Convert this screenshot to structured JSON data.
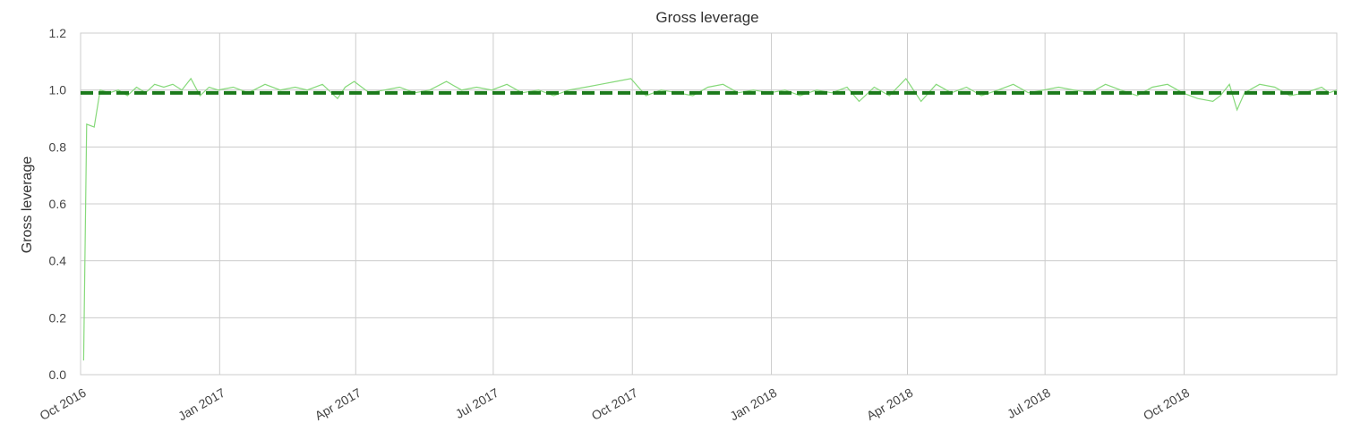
{
  "chart_data": {
    "type": "line",
    "title": "Gross leverage",
    "xlabel": "",
    "ylabel": "Gross leverage",
    "ylim": [
      0.0,
      1.2
    ],
    "y_ticks": [
      0.0,
      0.2,
      0.4,
      0.6,
      0.8,
      1.0,
      1.2
    ],
    "y_tick_labels": [
      "0.0",
      "0.2",
      "0.4",
      "0.6",
      "0.8",
      "1.0",
      "1.2"
    ],
    "xlim": [
      "2016-10-01",
      "2019-01-10"
    ],
    "x_ticks": [
      "2016-10-01",
      "2017-01-01",
      "2017-04-01",
      "2017-07-01",
      "2017-10-01",
      "2018-01-01",
      "2018-04-01",
      "2018-07-01",
      "2018-10-01"
    ],
    "x_tick_labels": [
      "Oct 2016",
      "Jan 2017",
      "Apr 2017",
      "Jul 2017",
      "Oct 2017",
      "Jan 2018",
      "Apr 2018",
      "Jul 2018",
      "Oct 2018"
    ],
    "grid": true,
    "mean_line": {
      "value": 0.99,
      "color": "#1a7a1a"
    },
    "series": [
      {
        "color": "#86d97a",
        "x": [
          "2016-10-03",
          "2016-10-05",
          "2016-10-10",
          "2016-10-14",
          "2016-10-20",
          "2016-10-26",
          "2016-11-01",
          "2016-11-07",
          "2016-11-13",
          "2016-11-19",
          "2016-11-25",
          "2016-12-01",
          "2016-12-07",
          "2016-12-13",
          "2016-12-19",
          "2016-12-25",
          "2016-12-31",
          "2017-01-10",
          "2017-01-20",
          "2017-01-31",
          "2017-02-10",
          "2017-02-20",
          "2017-02-28",
          "2017-03-10",
          "2017-03-20",
          "2017-03-25",
          "2017-03-31",
          "2017-04-10",
          "2017-04-20",
          "2017-04-30",
          "2017-05-10",
          "2017-05-20",
          "2017-05-31",
          "2017-06-10",
          "2017-06-20",
          "2017-06-30",
          "2017-07-10",
          "2017-07-20",
          "2017-07-31",
          "2017-08-10",
          "2017-08-20",
          "2017-08-31",
          "2017-09-10",
          "2017-09-20",
          "2017-09-30",
          "2017-10-10",
          "2017-10-20",
          "2017-10-31",
          "2017-11-10",
          "2017-11-20",
          "2017-11-30",
          "2017-12-10",
          "2017-12-20",
          "2017-12-31",
          "2018-01-10",
          "2018-01-20",
          "2018-01-31",
          "2018-02-10",
          "2018-02-20",
          "2018-02-28",
          "2018-03-10",
          "2018-03-20",
          "2018-03-31",
          "2018-04-10",
          "2018-04-20",
          "2018-04-30",
          "2018-05-10",
          "2018-05-20",
          "2018-05-31",
          "2018-06-10",
          "2018-06-20",
          "2018-06-30",
          "2018-07-10",
          "2018-07-20",
          "2018-07-31",
          "2018-08-10",
          "2018-08-20",
          "2018-08-31",
          "2018-09-10",
          "2018-09-20",
          "2018-09-30",
          "2018-10-10",
          "2018-10-20",
          "2018-10-25",
          "2018-10-31",
          "2018-11-05",
          "2018-11-10",
          "2018-11-20",
          "2018-11-30",
          "2018-12-10",
          "2018-12-20",
          "2018-12-31",
          "2019-01-05",
          "2019-01-10"
        ],
        "values": [
          0.05,
          0.88,
          0.87,
          1.0,
          0.99,
          1.0,
          0.98,
          1.01,
          0.99,
          1.02,
          1.01,
          1.02,
          1.0,
          1.04,
          0.98,
          1.01,
          1.0,
          1.01,
          0.99,
          1.02,
          1.0,
          1.01,
          1.0,
          1.02,
          0.97,
          1.01,
          1.03,
          0.99,
          1.0,
          1.01,
          0.99,
          1.0,
          1.03,
          1.0,
          1.01,
          1.0,
          1.02,
          0.99,
          1.0,
          0.98,
          1.0,
          1.01,
          1.02,
          1.03,
          1.04,
          0.98,
          1.0,
          0.99,
          0.98,
          1.01,
          1.02,
          0.99,
          1.0,
          0.99,
          1.0,
          0.98,
          1.0,
          0.99,
          1.01,
          0.96,
          1.01,
          0.98,
          1.04,
          0.96,
          1.02,
          0.99,
          1.01,
          0.98,
          1.0,
          1.02,
          0.99,
          1.0,
          1.01,
          1.0,
          0.99,
          1.02,
          1.0,
          0.98,
          1.01,
          1.02,
          0.99,
          0.97,
          0.96,
          0.98,
          1.02,
          0.93,
          0.99,
          1.02,
          1.01,
          0.98,
          0.99,
          1.01,
          0.99,
          1.0
        ]
      }
    ]
  }
}
